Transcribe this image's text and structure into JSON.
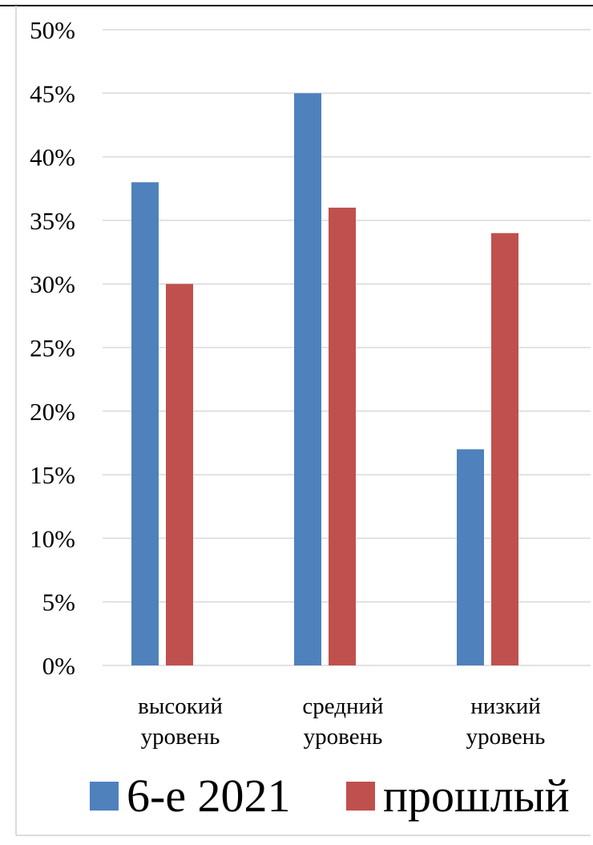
{
  "chart_data": {
    "type": "bar",
    "categories": [
      "высокий уровень",
      "средний уровень",
      "низкий уровень"
    ],
    "series": [
      {
        "name": "6-е 2021",
        "values": [
          38,
          45,
          17
        ],
        "color": "#4F81BD"
      },
      {
        "name": "прошлый",
        "values": [
          30,
          36,
          34
        ],
        "color": "#C0504D"
      }
    ],
    "yticks": [
      "0%",
      "5%",
      "10%",
      "15%",
      "20%",
      "25%",
      "30%",
      "35%",
      "40%",
      "45%",
      "50%"
    ],
    "ylim": [
      0,
      50
    ],
    "ylabel_unit": "%",
    "grid": true,
    "legend_position": "bottom"
  }
}
